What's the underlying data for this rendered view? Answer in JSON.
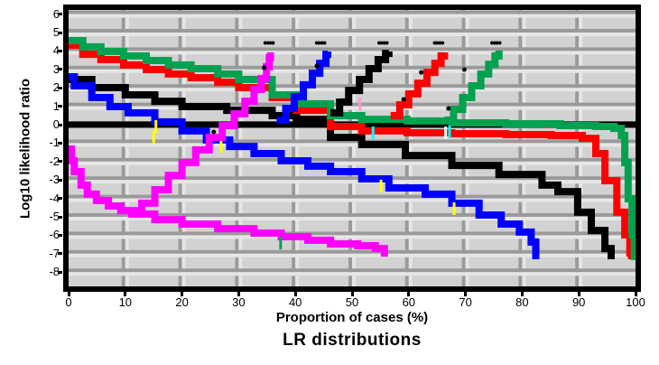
{
  "figure": {
    "caption": "LR distributions",
    "background": "#ffffff",
    "plot_bg": "#d2d2d2",
    "frame_color": "#000000",
    "grid_dark": "#9a9a9a",
    "grid_light": "#e6e6e6"
  },
  "axes": {
    "x": {
      "label": "Proportion of cases (%)",
      "ticks": [
        0,
        10,
        20,
        30,
        40,
        50,
        60,
        70,
        80,
        90,
        100
      ],
      "lim": [
        0,
        100
      ]
    },
    "y": {
      "label": "Log10 likelihood ratio",
      "ticks": [
        6,
        5,
        4,
        3,
        2,
        1,
        0,
        -1,
        -2,
        -3,
        -4,
        -5,
        -6,
        -7,
        -8
      ],
      "lim": [
        -8.8,
        6.3
      ]
    }
  },
  "chart_data": {
    "type": "line",
    "title": "LR distributions",
    "xlabel": "Proportion of cases (%)",
    "ylabel": "Log10 likelihood ratio",
    "xlim": [
      0,
      100
    ],
    "ylim": [
      -8.8,
      6.3
    ],
    "grid": true,
    "zero_line": {
      "y": 0,
      "color": "#000000",
      "width": 7
    },
    "series": [
      {
        "name": "black-descending",
        "color": "#000000",
        "width": 8,
        "step": true,
        "points": [
          [
            0,
            2.45
          ],
          [
            4.1,
            2.01
          ],
          [
            10,
            1.62
          ],
          [
            15.2,
            1.27
          ],
          [
            20,
            0.98
          ],
          [
            27.9,
            0.78
          ],
          [
            35.9,
            0.49
          ],
          [
            40.2,
            0.29
          ],
          [
            46.2,
            -0.69
          ],
          [
            51.7,
            -1.08
          ],
          [
            59.4,
            -1.67
          ],
          [
            67.6,
            -2.21
          ],
          [
            75.9,
            -2.7
          ],
          [
            83.5,
            -3.28
          ],
          [
            86.3,
            -3.63
          ],
          [
            89.8,
            -4.75
          ],
          [
            92.2,
            -5.74
          ],
          [
            94.6,
            -6.72
          ],
          [
            95.7,
            -7.3
          ]
        ]
      },
      {
        "name": "blue-descending",
        "color": "#0000ff",
        "width": 8,
        "step": true,
        "points": [
          [
            0,
            2.6
          ],
          [
            1,
            2.11
          ],
          [
            4.1,
            1.47
          ],
          [
            7.3,
            0.98
          ],
          [
            10.5,
            0.64
          ],
          [
            15.2,
            0.15
          ],
          [
            20,
            -0.34
          ],
          [
            24.3,
            -0.83
          ],
          [
            28.4,
            -1.18
          ],
          [
            32.7,
            -1.57
          ],
          [
            37.5,
            -1.96
          ],
          [
            42.2,
            -2.25
          ],
          [
            46.2,
            -2.55
          ],
          [
            51.7,
            -2.94
          ],
          [
            56.5,
            -3.43
          ],
          [
            62.9,
            -3.77
          ],
          [
            67.6,
            -4.26
          ],
          [
            72.4,
            -4.9
          ],
          [
            76.3,
            -5.39
          ],
          [
            79.5,
            -5.83
          ],
          [
            81.6,
            -6.37
          ],
          [
            82.4,
            -7.3
          ]
        ]
      },
      {
        "name": "red-descending",
        "color": "#ff0000",
        "width": 8,
        "step": true,
        "points": [
          [
            0,
            4.31
          ],
          [
            2.5,
            3.82
          ],
          [
            5.7,
            3.53
          ],
          [
            9.7,
            3.24
          ],
          [
            13.7,
            2.99
          ],
          [
            17.6,
            2.75
          ],
          [
            21.6,
            2.55
          ],
          [
            26.3,
            2.3
          ],
          [
            30,
            2.01
          ],
          [
            35.9,
            1.47
          ],
          [
            40.2,
            0.78
          ],
          [
            46.2,
            -0.1
          ],
          [
            51.7,
            -0.34
          ],
          [
            59.7,
            -0.44
          ],
          [
            67.6,
            -0.49
          ],
          [
            77.1,
            -0.54
          ],
          [
            85.1,
            -0.59
          ],
          [
            90.6,
            -0.74
          ],
          [
            93,
            -1.57
          ],
          [
            94.6,
            -3.04
          ],
          [
            96.7,
            -4.75
          ],
          [
            98.1,
            -5.98
          ],
          [
            99,
            -6.96
          ],
          [
            99.3,
            -7.3
          ]
        ]
      },
      {
        "name": "green-descending",
        "color": "#00a24f",
        "width": 8,
        "step": true,
        "points": [
          [
            0,
            4.56
          ],
          [
            2.5,
            4.22
          ],
          [
            5.7,
            3.97
          ],
          [
            9.7,
            3.73
          ],
          [
            13.7,
            3.48
          ],
          [
            17.6,
            3.24
          ],
          [
            21.6,
            3.04
          ],
          [
            26.3,
            2.75
          ],
          [
            30,
            2.45
          ],
          [
            35.9,
            1.62
          ],
          [
            40.2,
            1.13
          ],
          [
            46.2,
            0.49
          ],
          [
            51.7,
            0.29
          ],
          [
            59.7,
            0.2
          ],
          [
            67.6,
            0.1
          ],
          [
            77.1,
            0.05
          ],
          [
            86.7,
            -0.05
          ],
          [
            93,
            -0.1
          ],
          [
            96.2,
            -0.2
          ],
          [
            97.5,
            -0.59
          ],
          [
            98.1,
            -2.06
          ],
          [
            98.7,
            -4.02
          ],
          [
            99.4,
            -5.98
          ],
          [
            99.8,
            -7.35
          ]
        ]
      },
      {
        "name": "magenta-descending",
        "color": "#ff00ff",
        "width": 8,
        "step": true,
        "points": [
          [
            0,
            -1.32
          ],
          [
            0.5,
            -1.96
          ],
          [
            1,
            -2.55
          ],
          [
            2.2,
            -3.28
          ],
          [
            3.3,
            -3.77
          ],
          [
            4.9,
            -4.12
          ],
          [
            7,
            -4.41
          ],
          [
            9.2,
            -4.66
          ],
          [
            11.7,
            -4.85
          ],
          [
            15.2,
            -5.15
          ],
          [
            20,
            -5.39
          ],
          [
            26.3,
            -5.64
          ],
          [
            32.7,
            -5.88
          ],
          [
            37.5,
            -6.08
          ],
          [
            42.2,
            -6.27
          ],
          [
            46.2,
            -6.47
          ],
          [
            51,
            -6.57
          ],
          [
            54.1,
            -6.72
          ],
          [
            55.7,
            -7.16
          ]
        ]
      },
      {
        "name": "magenta-ascending",
        "color": "#ff00ff",
        "width": 8,
        "step": true,
        "points": [
          [
            10.5,
            -4.85
          ],
          [
            12.9,
            -4.26
          ],
          [
            15.2,
            -3.53
          ],
          [
            17.6,
            -2.75
          ],
          [
            20,
            -2.06
          ],
          [
            22.4,
            -1.37
          ],
          [
            24.8,
            -0.69
          ],
          [
            27.1,
            -0.05
          ],
          [
            29.2,
            0.59
          ],
          [
            31.1,
            1.27
          ],
          [
            32.7,
            1.91
          ],
          [
            34,
            2.5
          ],
          [
            34.9,
            3.14
          ],
          [
            35.4,
            3.63
          ],
          [
            35.6,
            3.92
          ]
        ]
      },
      {
        "name": "blue-ascending",
        "color": "#0000ff",
        "width": 8,
        "step": true,
        "points": [
          [
            36.7,
            0.25
          ],
          [
            38.3,
            0.88
          ],
          [
            39.8,
            1.52
          ],
          [
            41.4,
            2.16
          ],
          [
            43,
            2.79
          ],
          [
            44.3,
            3.33
          ],
          [
            45.4,
            3.82
          ],
          [
            45.7,
            3.97
          ]
        ]
      },
      {
        "name": "black-ascending",
        "color": "#000000",
        "width": 8,
        "step": true,
        "points": [
          [
            46.2,
            0.64
          ],
          [
            47.8,
            1.23
          ],
          [
            49.4,
            1.86
          ],
          [
            51.3,
            2.45
          ],
          [
            53,
            3.04
          ],
          [
            54.6,
            3.53
          ],
          [
            55.9,
            3.87
          ],
          [
            56.5,
            3.97
          ]
        ]
      },
      {
        "name": "red-ascending",
        "color": "#ff0000",
        "width": 8,
        "step": true,
        "points": [
          [
            56.8,
            0.49
          ],
          [
            58.4,
            1.08
          ],
          [
            60,
            1.67
          ],
          [
            61.6,
            2.25
          ],
          [
            63.2,
            2.84
          ],
          [
            64.6,
            3.33
          ],
          [
            65.7,
            3.73
          ],
          [
            66.3,
            3.92
          ]
        ]
      },
      {
        "name": "green-ascending",
        "color": "#00a24f",
        "width": 8,
        "step": true,
        "points": [
          [
            66.3,
            0.25
          ],
          [
            67.9,
            0.83
          ],
          [
            69.5,
            1.47
          ],
          [
            71.1,
            2.11
          ],
          [
            72.7,
            2.75
          ],
          [
            74.1,
            3.28
          ],
          [
            75.2,
            3.73
          ],
          [
            75.9,
            4.02
          ]
        ]
      }
    ],
    "curve_labels": [
      {
        "text": "••••",
        "x": 35.2,
        "y": 4.46
      },
      {
        "text": "••••",
        "x": 44.3,
        "y": 4.46
      },
      {
        "text": "••••",
        "x": 55.3,
        "y": 4.46
      },
      {
        "text": "••••",
        "x": 65.1,
        "y": 4.46
      },
      {
        "text": "••••",
        "x": 75.2,
        "y": 4.46
      }
    ],
    "accent_ticks": [
      {
        "x": 15.4,
        "y": -0.1,
        "color": "#ffff00"
      },
      {
        "x": 15.0,
        "y": -0.69,
        "color": "#ffff00"
      },
      {
        "x": 26.9,
        "y": -1.18,
        "color": "#ffff00"
      },
      {
        "x": 55.1,
        "y": -3.33,
        "color": "#ffff00"
      },
      {
        "x": 68.0,
        "y": -4.56,
        "color": "#ffff00"
      },
      {
        "x": 53.7,
        "y": -0.44,
        "color": "#00ffff"
      },
      {
        "x": 67.2,
        "y": -0.39,
        "color": "#00ffff"
      },
      {
        "x": 66.5,
        "y": -0.44,
        "color": "#ffffff"
      },
      {
        "x": 47.5,
        "y": 1.13,
        "color": "#ffffff"
      },
      {
        "x": 51.4,
        "y": 1.13,
        "color": "#ff9acc"
      },
      {
        "x": 37.4,
        "y": -6.42,
        "color": "#00a24f"
      }
    ],
    "marker_dots": [
      [
        43.8,
        3.19
      ],
      [
        49.4,
        1.86
      ],
      [
        59.1,
        1.37
      ],
      [
        62.2,
        2.84
      ],
      [
        67,
        0.88
      ],
      [
        69.8,
        2.99
      ],
      [
        34.5,
        3.09
      ],
      [
        25.6,
        -0.39
      ]
    ]
  }
}
